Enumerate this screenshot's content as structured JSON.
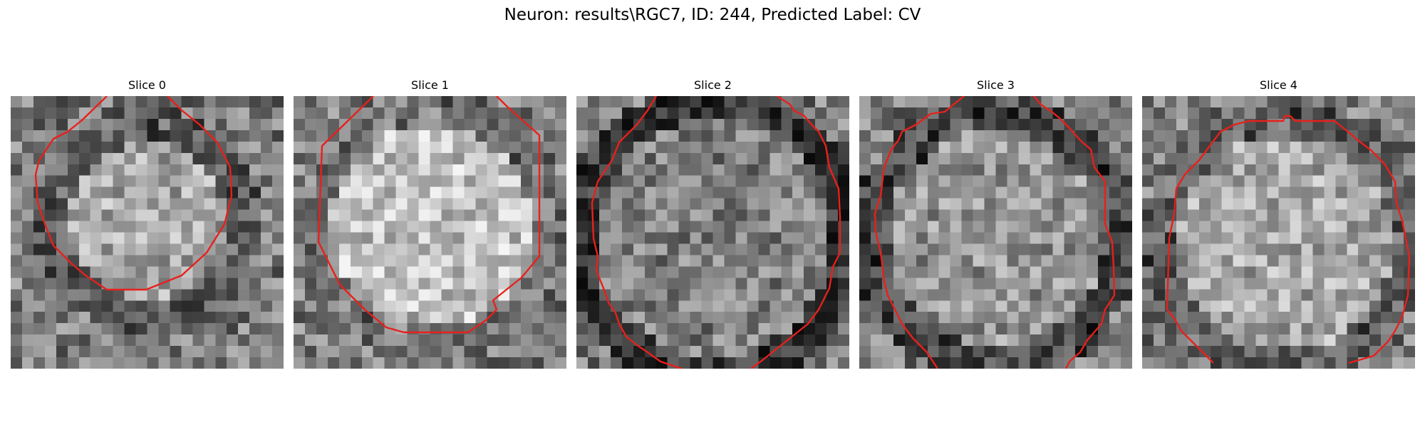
{
  "figure": {
    "title": "Neuron: results\\RGC7, ID: 244, Predicted Label: CV"
  },
  "slices": [
    {
      "title": "Slice 0"
    },
    {
      "title": "Slice 1"
    },
    {
      "title": "Slice 2"
    },
    {
      "title": "Slice 3"
    },
    {
      "title": "Slice 4"
    }
  ],
  "colors": {
    "contour": "#e8201c",
    "background": "#ffffff"
  },
  "image_style": "grayscale-noise-texture"
}
